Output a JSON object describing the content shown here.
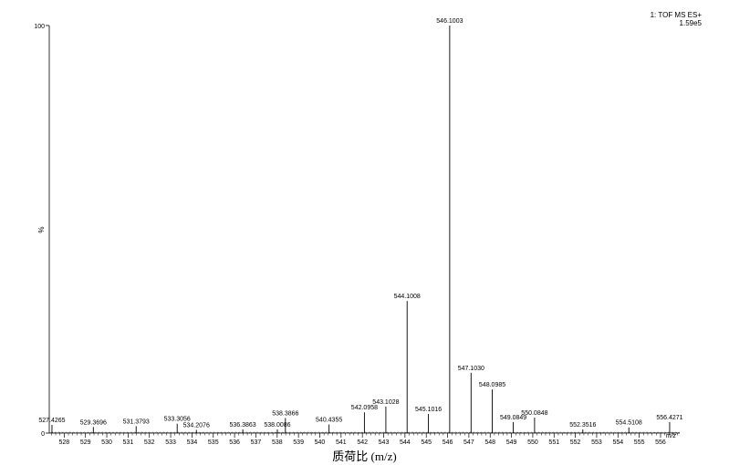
{
  "header": {
    "instrument": "1: TOF MS ES+",
    "intensity": "1.59e5"
  },
  "axes": {
    "xlabel": "质荷比 (m/z)",
    "xunit": "m/z",
    "ylabel": "%",
    "y_top_label": "100",
    "y_bottom_label": "0"
  },
  "chart_data": {
    "type": "bar",
    "title": "",
    "xlabel": "质荷比 (m/z)",
    "ylabel": "%",
    "xlim": [
      527.3,
      556.9
    ],
    "ylim": [
      0,
      100
    ],
    "x_ticks": [
      528,
      529,
      530,
      531,
      532,
      533,
      534,
      535,
      536,
      537,
      538,
      539,
      540,
      541,
      542,
      543,
      544,
      545,
      546,
      547,
      548,
      549,
      550,
      551,
      552,
      553,
      554,
      555,
      556
    ],
    "peaks": [
      {
        "mz": 527.4265,
        "intensity": 2.0,
        "label": "527.4265"
      },
      {
        "mz": 529.3696,
        "intensity": 1.5,
        "label": "529.3696"
      },
      {
        "mz": 531.3793,
        "intensity": 1.7,
        "label": "531.3793"
      },
      {
        "mz": 533.3056,
        "intensity": 2.3,
        "label": "533.3056"
      },
      {
        "mz": 534.2076,
        "intensity": 0.8,
        "label": "534.2076"
      },
      {
        "mz": 536.3863,
        "intensity": 0.9,
        "label": "536.3863"
      },
      {
        "mz": 538.0086,
        "intensity": 0.9,
        "label": "538.0086"
      },
      {
        "mz": 538.3866,
        "intensity": 3.7,
        "label": "538.3866"
      },
      {
        "mz": 540.4355,
        "intensity": 2.1,
        "label": "540.4355"
      },
      {
        "mz": 542.0958,
        "intensity": 5.1,
        "label": "542.0958"
      },
      {
        "mz": 543.1028,
        "intensity": 6.5,
        "label": "543.1028"
      },
      {
        "mz": 544.1008,
        "intensity": 32.4,
        "label": "544.1008"
      },
      {
        "mz": 545.1016,
        "intensity": 4.7,
        "label": "545.1016"
      },
      {
        "mz": 546.1003,
        "intensity": 100.0,
        "label": "546.1003"
      },
      {
        "mz": 547.103,
        "intensity": 14.8,
        "label": "547.1030"
      },
      {
        "mz": 548.0985,
        "intensity": 10.7,
        "label": "548.0985"
      },
      {
        "mz": 549.0849,
        "intensity": 2.7,
        "label": "549.0849"
      },
      {
        "mz": 550.0848,
        "intensity": 3.8,
        "label": "550.0848"
      },
      {
        "mz": 552.3516,
        "intensity": 0.9,
        "label": "552.3516"
      },
      {
        "mz": 554.5108,
        "intensity": 1.4,
        "label": "554.5108"
      },
      {
        "mz": 556.4271,
        "intensity": 2.7,
        "label": "556.4271"
      }
    ],
    "grid": false,
    "legend": "none"
  }
}
